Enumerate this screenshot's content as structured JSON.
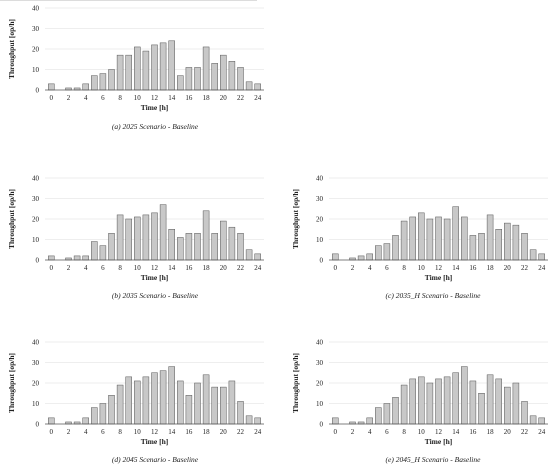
{
  "colors": {
    "bar_fill": "#c8c8c8",
    "bar_stroke": "#555555",
    "grid": "#dddddd",
    "axis": "#555555"
  },
  "chart_data": [
    {
      "type": "bar",
      "caption": "(a) 2025 Scenario - Baseline",
      "xlabel": "Time [h]",
      "ylabel": "Throughput [op/h]",
      "ylim": [
        0,
        40
      ],
      "yticks": [
        0,
        10,
        20,
        30,
        40
      ],
      "xticks": [
        0,
        2,
        4,
        6,
        8,
        10,
        12,
        14,
        16,
        18,
        20,
        22,
        24
      ],
      "categories": [
        0,
        1,
        2,
        3,
        4,
        5,
        6,
        7,
        8,
        9,
        10,
        11,
        12,
        13,
        14,
        15,
        16,
        17,
        18,
        19,
        20,
        21,
        22,
        23,
        24
      ],
      "values": [
        3,
        0,
        1,
        1,
        3,
        7,
        8,
        10,
        17,
        17,
        21,
        19,
        22,
        23,
        24,
        7,
        11,
        11,
        21,
        13,
        17,
        14,
        11,
        4,
        3
      ],
      "grid": true
    },
    {
      "type": "bar",
      "caption": "(b) 2035 Scenario - Baseline",
      "xlabel": "Time [h]",
      "ylabel": "Throughput [op/h]",
      "ylim": [
        0,
        40
      ],
      "yticks": [
        0,
        10,
        20,
        30,
        40
      ],
      "xticks": [
        0,
        2,
        4,
        6,
        8,
        10,
        12,
        14,
        16,
        18,
        20,
        22,
        24
      ],
      "categories": [
        0,
        1,
        2,
        3,
        4,
        5,
        6,
        7,
        8,
        9,
        10,
        11,
        12,
        13,
        14,
        15,
        16,
        17,
        18,
        19,
        20,
        21,
        22,
        23,
        24
      ],
      "values": [
        2,
        0,
        1,
        2,
        2,
        9,
        7,
        13,
        22,
        20,
        21,
        22,
        23,
        27,
        15,
        11,
        13,
        13,
        24,
        13,
        19,
        16,
        13,
        5,
        3
      ],
      "grid": true
    },
    {
      "type": "bar",
      "caption": "(c) 2035_H Scenario - Baseline",
      "xlabel": "Time [h]",
      "ylabel": "Throughput [op/h]",
      "ylim": [
        0,
        40
      ],
      "yticks": [
        0,
        10,
        20,
        30,
        40
      ],
      "xticks": [
        0,
        2,
        4,
        6,
        8,
        10,
        12,
        14,
        16,
        18,
        20,
        22,
        24
      ],
      "categories": [
        0,
        1,
        2,
        3,
        4,
        5,
        6,
        7,
        8,
        9,
        10,
        11,
        12,
        13,
        14,
        15,
        16,
        17,
        18,
        19,
        20,
        21,
        22,
        23,
        24
      ],
      "values": [
        3,
        0,
        1,
        2,
        3,
        7,
        8,
        12,
        19,
        21,
        23,
        20,
        21,
        20,
        26,
        21,
        12,
        13,
        22,
        15,
        18,
        17,
        13,
        5,
        3
      ],
      "grid": true
    },
    {
      "type": "bar",
      "caption": "(d) 2045 Scenario - Baseline",
      "xlabel": "Time [h]",
      "ylabel": "Throughput [op/h]",
      "ylim": [
        0,
        40
      ],
      "yticks": [
        0,
        10,
        20,
        30,
        40
      ],
      "xticks": [
        0,
        2,
        4,
        6,
        8,
        10,
        12,
        14,
        16,
        18,
        20,
        22,
        24
      ],
      "categories": [
        0,
        1,
        2,
        3,
        4,
        5,
        6,
        7,
        8,
        9,
        10,
        11,
        12,
        13,
        14,
        15,
        16,
        17,
        18,
        19,
        20,
        21,
        22,
        23,
        24
      ],
      "values": [
        3,
        0,
        1,
        1,
        3,
        8,
        10,
        14,
        19,
        23,
        21,
        23,
        25,
        26,
        28,
        21,
        14,
        20,
        24,
        18,
        18,
        21,
        11,
        4,
        3
      ],
      "grid": true
    },
    {
      "type": "bar",
      "caption": "(e) 2045_H Scenario - Baseline",
      "xlabel": "Time [h]",
      "ylabel": "Throughput [op/h]",
      "ylim": [
        0,
        40
      ],
      "yticks": [
        0,
        10,
        20,
        30,
        40
      ],
      "xticks": [
        0,
        2,
        4,
        6,
        8,
        10,
        12,
        14,
        16,
        18,
        20,
        22,
        24
      ],
      "categories": [
        0,
        1,
        2,
        3,
        4,
        5,
        6,
        7,
        8,
        9,
        10,
        11,
        12,
        13,
        14,
        15,
        16,
        17,
        18,
        19,
        20,
        21,
        22,
        23,
        24
      ],
      "values": [
        3,
        0,
        1,
        1,
        3,
        8,
        10,
        13,
        19,
        22,
        23,
        20,
        22,
        23,
        25,
        28,
        21,
        15,
        24,
        22,
        18,
        20,
        11,
        4,
        3
      ],
      "grid": true
    }
  ]
}
